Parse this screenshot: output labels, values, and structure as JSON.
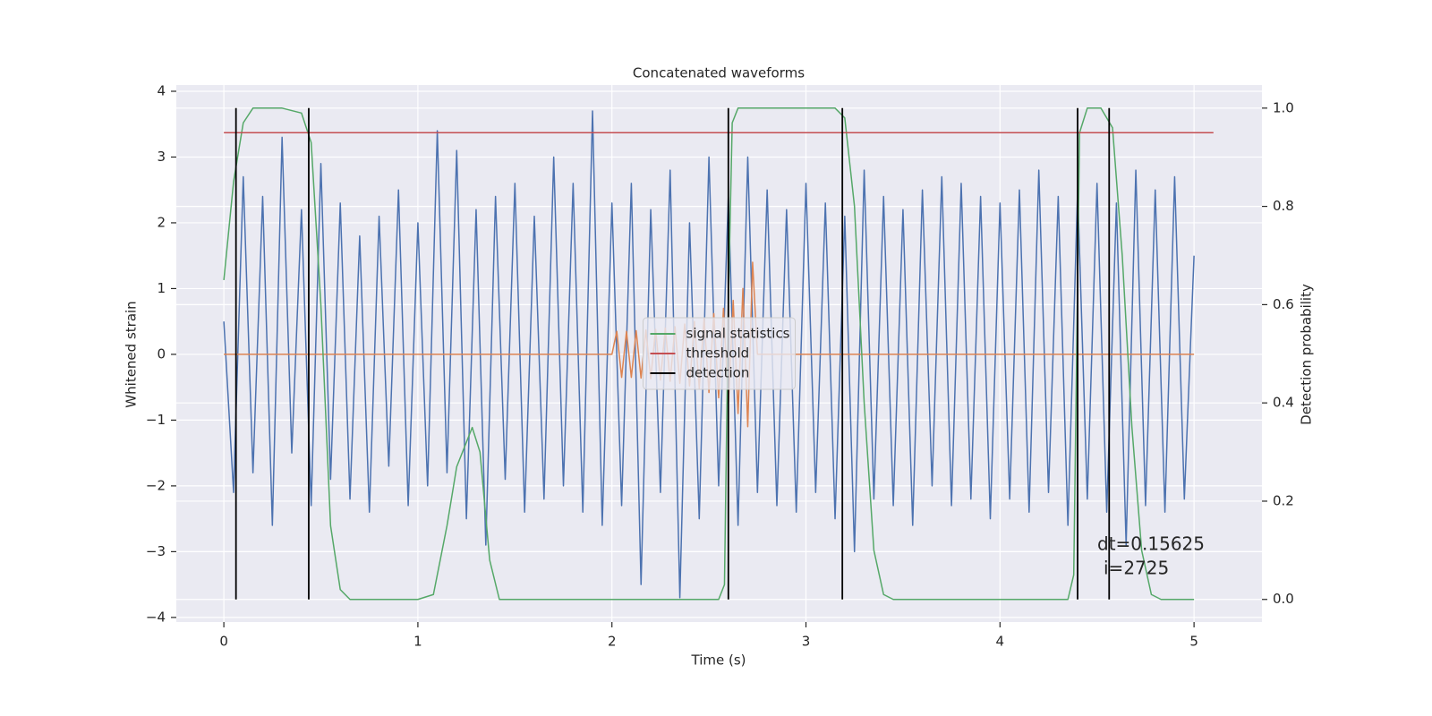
{
  "chart_data": {
    "type": "line",
    "title": "Concatenated waveforms",
    "x_label": "Time (s)",
    "y_label": "Whitened strain",
    "y2_label": "Detection probability",
    "xlim": [
      -0.245,
      5.35
    ],
    "ylim": [
      -4.07,
      4.095
    ],
    "y2lim": [
      -0.046,
      1.047
    ],
    "xticks": [
      0,
      1,
      2,
      3,
      4,
      5
    ],
    "yticks": [
      {
        "value": -4,
        "label": "−4"
      },
      {
        "value": -3,
        "label": "−3"
      },
      {
        "value": -2,
        "label": "−2"
      },
      {
        "value": -1,
        "label": "−1"
      },
      0,
      1,
      2,
      3,
      4
    ],
    "y2ticks": [
      {
        "value": 0,
        "label": "0.0"
      },
      0.2,
      0.4,
      0.6,
      0.8,
      {
        "value": 1,
        "label": "1.0"
      }
    ],
    "grid": true,
    "legend": "center",
    "series": [
      {
        "color": "#4c72b0",
        "x": [
          0,
          0.05,
          0.1,
          0.15,
          0.2,
          0.25,
          0.3,
          0.35,
          0.4,
          0.45,
          0.5,
          0.55,
          0.6,
          0.65,
          0.7,
          0.75,
          0.8,
          0.85,
          0.9,
          0.95,
          1,
          1.05,
          1.1,
          1.15,
          1.2,
          1.25,
          1.3,
          1.35,
          1.4,
          1.45,
          1.5,
          1.55,
          1.6,
          1.65,
          1.7,
          1.75,
          1.8,
          1.85,
          1.9,
          1.95,
          2,
          2.05,
          2.1,
          2.15,
          2.2,
          2.25,
          2.3,
          2.35,
          2.4,
          2.45,
          2.5,
          2.55,
          2.6,
          2.65,
          2.7,
          2.75,
          2.8,
          2.85,
          2.9,
          2.95,
          3,
          3.05,
          3.1,
          3.15,
          3.2,
          3.25,
          3.3,
          3.35,
          3.4,
          3.45,
          3.5,
          3.55,
          3.6,
          3.65,
          3.7,
          3.75,
          3.8,
          3.85,
          3.9,
          3.95,
          4,
          4.05,
          4.1,
          4.15,
          4.2,
          4.25,
          4.3,
          4.35,
          4.4,
          4.45,
          4.5,
          4.55,
          4.6,
          4.65,
          4.7,
          4.75,
          4.8,
          4.85,
          4.9,
          4.95,
          5
        ],
        "values": [
          0.5,
          -2.1,
          2.7,
          -1.8,
          2.4,
          -2.6,
          3.3,
          -1.5,
          2.2,
          -2.3,
          2.9,
          -1.9,
          2.3,
          -2.2,
          1.8,
          -2.4,
          2.1,
          -1.7,
          2.5,
          -2.3,
          2.0,
          -2.0,
          3.4,
          -1.8,
          3.1,
          -2.5,
          2.2,
          -2.9,
          2.4,
          -1.9,
          2.6,
          -2.4,
          2.1,
          -2.2,
          3.0,
          -2.0,
          2.6,
          -2.4,
          3.7,
          -2.6,
          2.3,
          -2.3,
          2.6,
          -3.5,
          2.2,
          -2.1,
          2.8,
          -3.7,
          2.0,
          -2.5,
          3.0,
          -2.0,
          2.4,
          -2.6,
          3.0,
          -2.1,
          2.5,
          -2.3,
          2.2,
          -2.4,
          2.6,
          -2.1,
          2.3,
          -2.5,
          2.1,
          -3.0,
          2.8,
          -2.2,
          2.4,
          -2.3,
          2.2,
          -2.6,
          2.5,
          -2.0,
          2.7,
          -2.3,
          2.6,
          -2.2,
          2.4,
          -2.5,
          2.3,
          -2.2,
          2.5,
          -2.4,
          2.8,
          -2.1,
          2.4,
          -2.6,
          2.5,
          -2.2,
          2.6,
          -2.4,
          2.3,
          -2.9,
          2.8,
          -2.3,
          2.5,
          -2.4,
          2.7,
          -2.2,
          1.5
        ]
      },
      {
        "color": "#dd8452",
        "x": [
          0,
          2,
          2.025,
          2.05,
          2.075,
          2.1,
          2.125,
          2.15,
          2.175,
          2.2,
          2.225,
          2.25,
          2.275,
          2.3,
          2.325,
          2.35,
          2.375,
          2.4,
          2.425,
          2.45,
          2.475,
          2.5,
          2.525,
          2.55,
          2.575,
          2.6,
          2.625,
          2.65,
          2.675,
          2.7,
          2.725,
          2.75,
          5
        ],
        "values": [
          0,
          0,
          0.35,
          -0.35,
          0.35,
          -0.35,
          0.36,
          -0.36,
          0.37,
          -0.37,
          0.38,
          -0.39,
          0.4,
          -0.41,
          0.42,
          -0.44,
          0.46,
          -0.48,
          0.5,
          -0.52,
          0.55,
          -0.58,
          0.62,
          -0.66,
          0.7,
          -0.75,
          0.82,
          -0.9,
          1.0,
          -1.1,
          1.4,
          0,
          0
        ]
      },
      {
        "name": "signal statistics",
        "color": "#55a868",
        "axis": "y2",
        "x": [
          0,
          0.05,
          0.1,
          0.15,
          0.3,
          0.4,
          0.45,
          0.5,
          0.55,
          0.6,
          0.65,
          1,
          1.08,
          1.15,
          1.2,
          1.28,
          1.32,
          1.37,
          1.42,
          2.55,
          2.58,
          2.6,
          2.62,
          2.65,
          3.15,
          3.2,
          3.25,
          3.3,
          3.35,
          3.4,
          3.45,
          4.35,
          4.38,
          4.41,
          4.45,
          4.52,
          4.58,
          4.63,
          4.68,
          4.73,
          4.78,
          4.83,
          5
        ],
        "values": [
          0.65,
          0.85,
          0.97,
          1,
          1,
          0.99,
          0.93,
          0.6,
          0.15,
          0.02,
          0,
          0,
          0.01,
          0.15,
          0.27,
          0.35,
          0.3,
          0.08,
          0,
          0,
          0.03,
          0.6,
          0.97,
          1,
          1,
          0.98,
          0.8,
          0.4,
          0.1,
          0.01,
          0,
          0,
          0.05,
          0.95,
          1,
          1,
          0.96,
          0.7,
          0.35,
          0.1,
          0.01,
          0,
          0
        ]
      },
      {
        "name": "threshold",
        "color": "#c44e52",
        "axis": "y2",
        "x": [
          0,
          5.1
        ],
        "values": [
          0.95,
          0.95
        ]
      }
    ],
    "detections": {
      "name": "detection",
      "color": "#000000",
      "axis": "y2",
      "ymin": 0,
      "ymax": 1,
      "x": [
        0.0625,
        0.4375,
        2.6,
        3.1875,
        4.4,
        4.5625
      ]
    },
    "annotations": [
      "dt=0.15625",
      "i=2725"
    ]
  }
}
